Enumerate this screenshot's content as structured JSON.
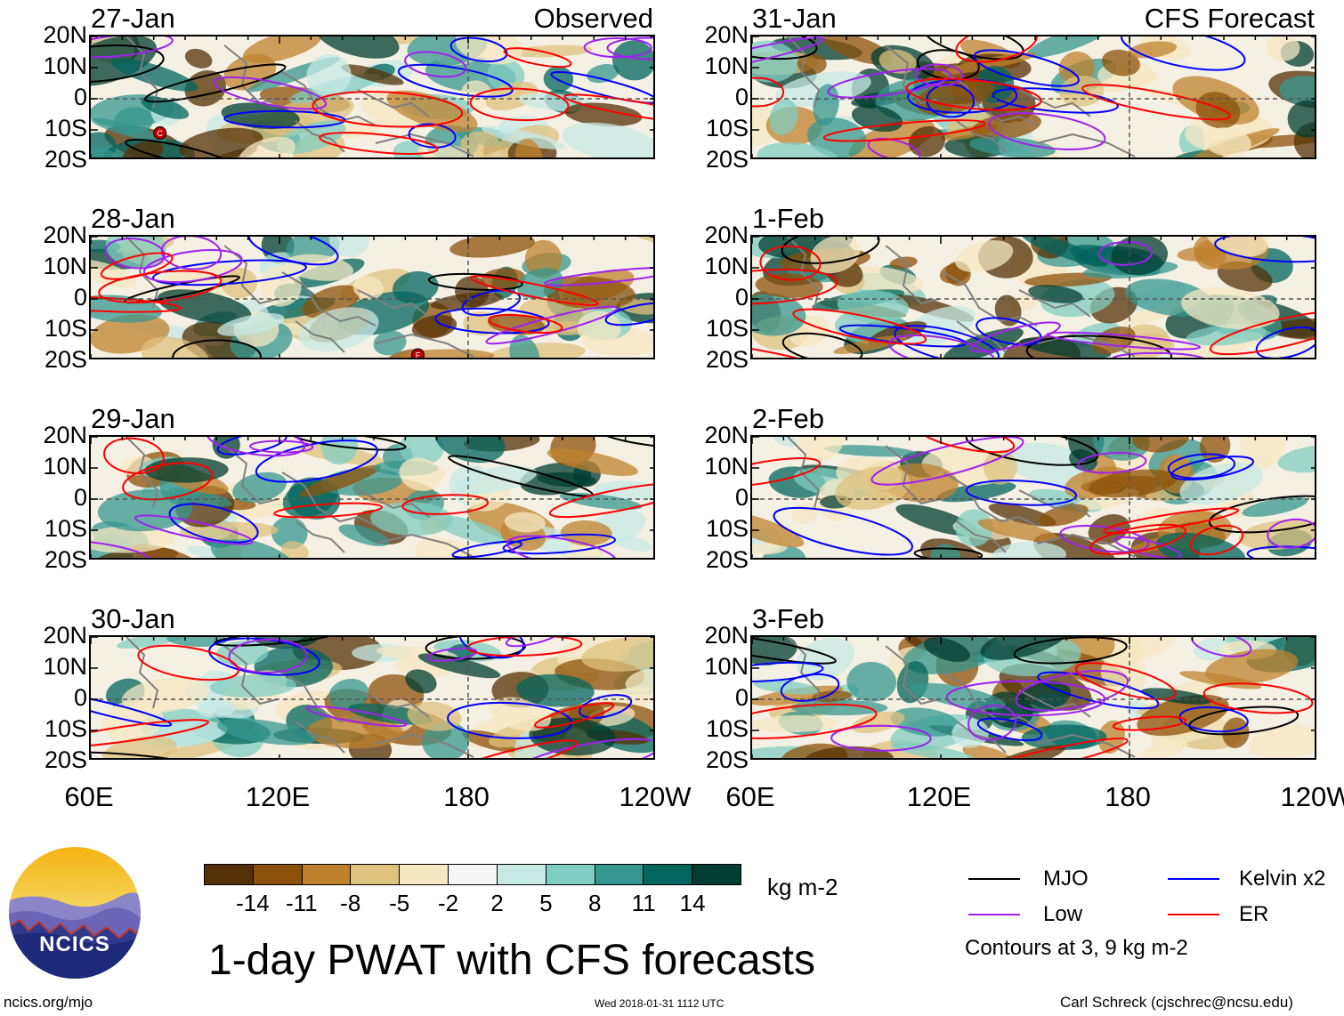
{
  "panels": [
    {
      "id": "p1",
      "date": "27-Jan",
      "label": "Observed",
      "seed": 11
    },
    {
      "id": "p2",
      "date": "28-Jan",
      "label": "",
      "seed": 23
    },
    {
      "id": "p3",
      "date": "29-Jan",
      "label": "",
      "seed": 37
    },
    {
      "id": "p4",
      "date": "30-Jan",
      "label": "",
      "seed": 41
    },
    {
      "id": "p5",
      "date": "31-Jan",
      "label": "CFS Forecast",
      "seed": 53
    },
    {
      "id": "p6",
      "date": "1-Feb",
      "label": "",
      "seed": 67
    },
    {
      "id": "p7",
      "date": "2-Feb",
      "label": "",
      "seed": 71
    },
    {
      "id": "p8",
      "date": "3-Feb",
      "label": "",
      "seed": 83
    }
  ],
  "lat_labels": [
    "20N",
    "10N",
    "0",
    "10S",
    "20S"
  ],
  "lon_labels": [
    "60E",
    "120E",
    "180",
    "120W"
  ],
  "storm_markers": [
    {
      "panel": "p1",
      "text": "C",
      "lon": 82,
      "lat": -11
    },
    {
      "panel": "p2",
      "text": "F",
      "lon": 164,
      "lat": -18
    }
  ],
  "colorbar": {
    "colors": [
      "#543005",
      "#8c510a",
      "#bf812d",
      "#dfc27d",
      "#f6e8c3",
      "#f5f5f5",
      "#c7eae5",
      "#80cdc1",
      "#35978f",
      "#01665e",
      "#003c30"
    ],
    "labels": [
      "-14",
      "-11",
      "-8",
      "-5",
      "-2",
      "2",
      "5",
      "8",
      "11",
      "14"
    ],
    "units": "kg m-2"
  },
  "title": "1-day PWAT with CFS forecasts",
  "legend": {
    "items": [
      {
        "label": "MJO",
        "color": "#000000"
      },
      {
        "label": "Kelvin x2",
        "color": "#0000ff"
      },
      {
        "label": "Low",
        "color": "#a020f0"
      },
      {
        "label": "ER",
        "color": "#ff0000"
      }
    ],
    "note": "Contours at 3, 9 kg m-2"
  },
  "logo_text": "NCICS",
  "footer": {
    "url": "ncics.org/mjo",
    "timestamp": "Wed 2018-01-31 1112 UTC",
    "author": "Carl Schreck (cjschrec@ncsu.edu)"
  }
}
